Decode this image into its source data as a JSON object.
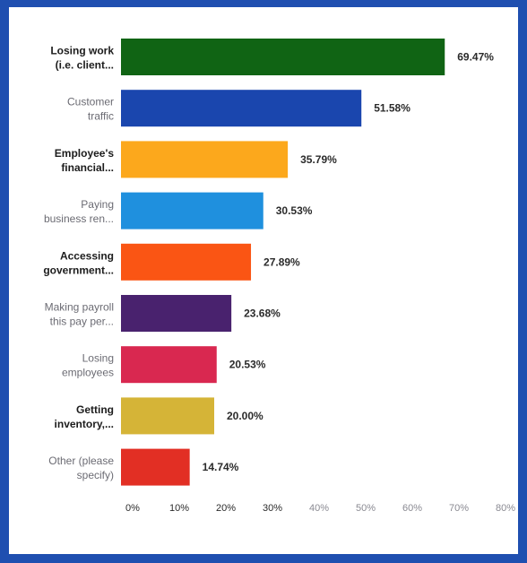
{
  "chart_data": {
    "type": "bar",
    "orientation": "horizontal",
    "title": "",
    "xlabel": "",
    "ylabel": "",
    "xlim": [
      0,
      80
    ],
    "grid": false,
    "categories": [
      [
        "Losing work",
        "(i.e. client..."
      ],
      [
        "Customer",
        "traffic"
      ],
      [
        "Employee's",
        "financial..."
      ],
      [
        "Paying",
        "business ren..."
      ],
      [
        "Accessing",
        "government..."
      ],
      [
        "Making payroll",
        "this pay per..."
      ],
      [
        "Losing",
        "employees"
      ],
      [
        "Getting",
        "inventory,..."
      ],
      [
        "Other (please",
        "specify)"
      ]
    ],
    "values": [
      69.47,
      51.58,
      35.79,
      30.53,
      27.89,
      23.68,
      20.53,
      20.0,
      14.74
    ],
    "value_labels": [
      "69.47%",
      "51.58%",
      "35.79%",
      "30.53%",
      "27.89%",
      "23.68%",
      "20.53%",
      "20.00%",
      "14.74%"
    ],
    "bold_categories": [
      true,
      false,
      true,
      false,
      true,
      false,
      false,
      true,
      false
    ],
    "colors": [
      "#106414",
      "#1a46ae",
      "#fca81c",
      "#1f90de",
      "#fa5514",
      "#49226e",
      "#d92850",
      "#d5b437",
      "#e22f24"
    ],
    "ticks": [
      "0%",
      "10%",
      "20%",
      "30%",
      "40%",
      "50%",
      "60%",
      "70%",
      "80%"
    ]
  }
}
